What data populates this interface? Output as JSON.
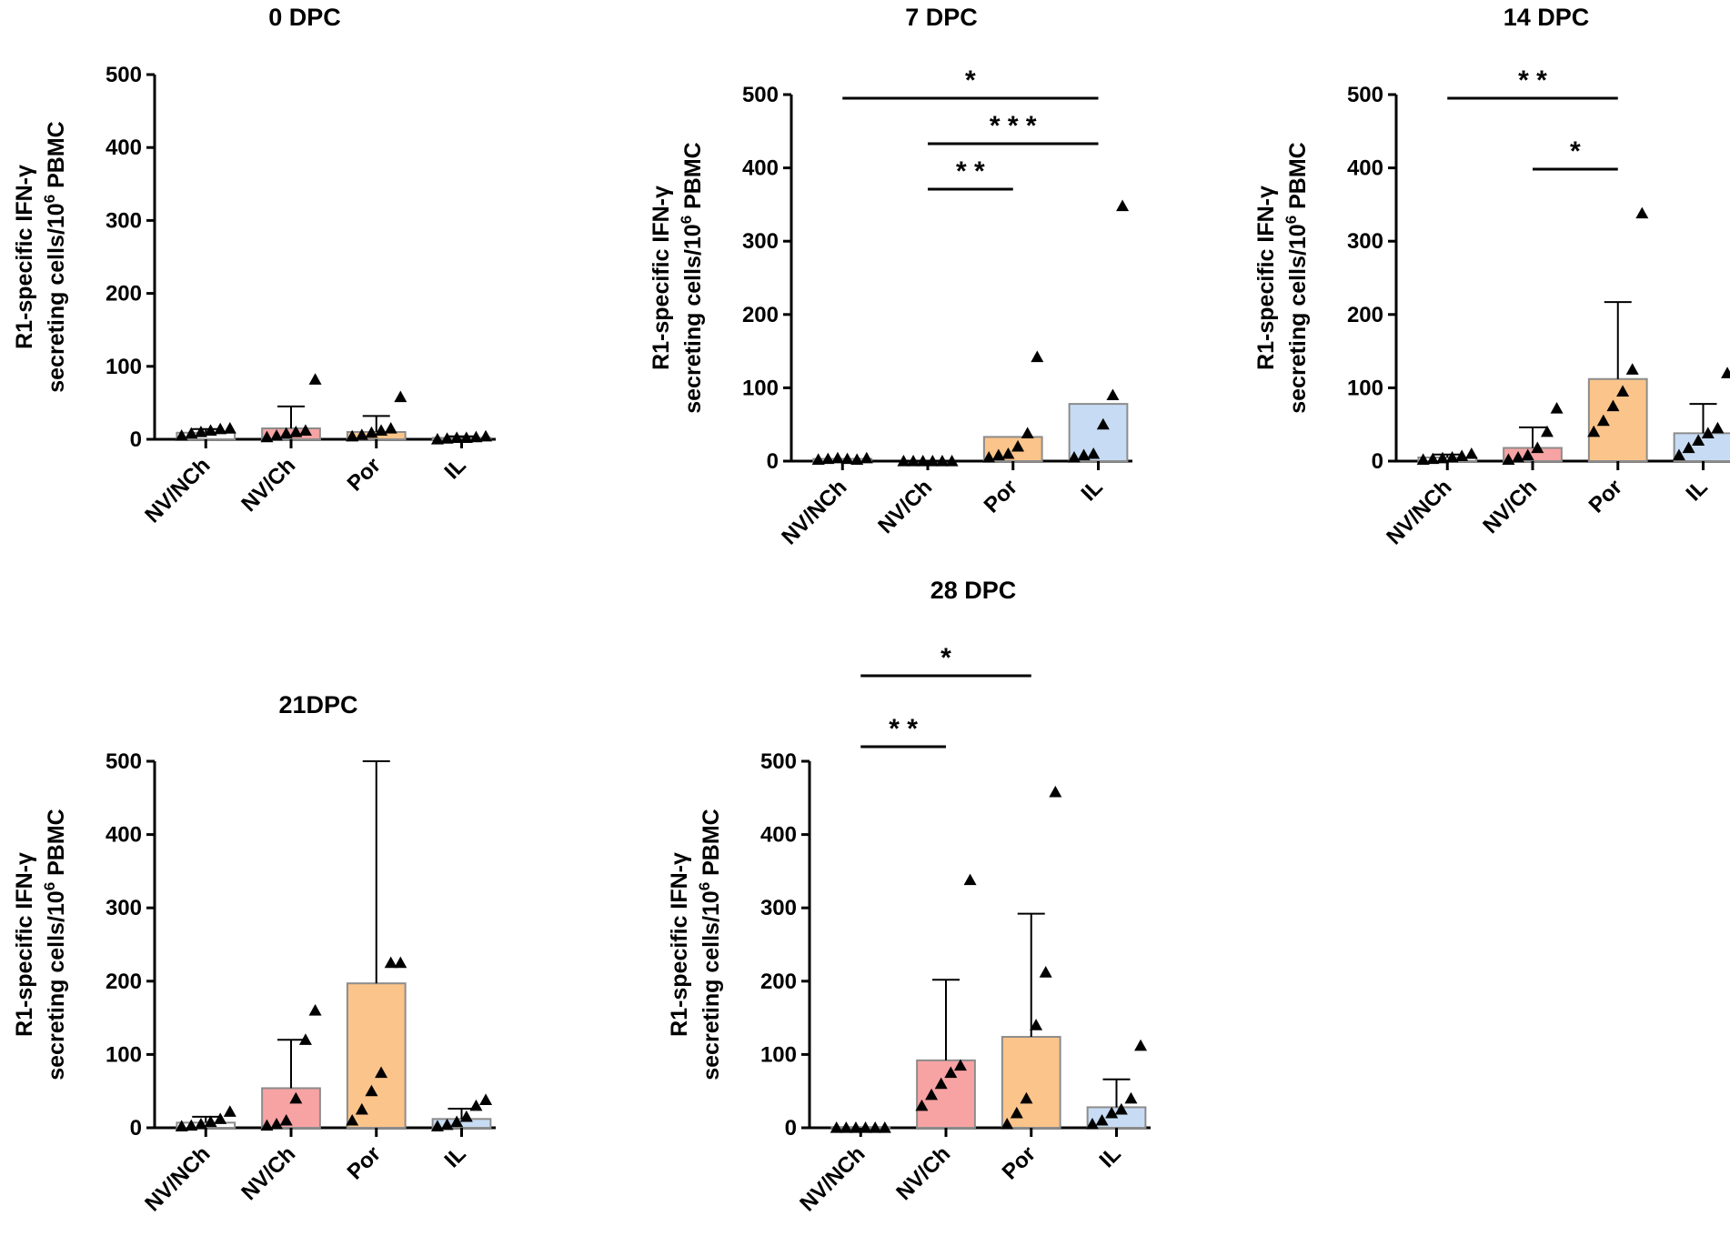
{
  "chart_data": [
    {
      "type": "bar",
      "title": "0 DPC",
      "ylabel_line1": "R1-specific IFN-γ",
      "ylabel_line2": "secreting cells/10",
      "ylabel_sup": "6",
      "ylabel_line2_tail": " PBMC",
      "ylim": [
        0,
        500
      ],
      "yticks": [
        "0",
        "100",
        "200",
        "300",
        "400",
        "500"
      ],
      "categories": [
        "NV/NCh",
        "NV/Ch",
        "Por",
        "IL"
      ],
      "values": [
        9,
        15,
        10,
        2
      ],
      "errors": [
        5,
        30,
        22,
        2
      ],
      "points": [
        [
          5,
          8,
          10,
          12,
          14,
          15
        ],
        [
          3,
          5,
          8,
          10,
          12,
          82
        ],
        [
          4,
          6,
          9,
          12,
          15,
          58
        ],
        [
          0,
          1,
          2,
          2,
          3,
          4
        ]
      ],
      "significance": []
    },
    {
      "type": "bar",
      "title": "7 DPC",
      "ylabel_line1": "R1-specific IFN-γ",
      "ylabel_line2": "secreting cells/10",
      "ylabel_sup": "6",
      "ylabel_line2_tail": " PBMC",
      "ylim": [
        0,
        500
      ],
      "yticks": [
        "0",
        "100",
        "200",
        "300",
        "400",
        "500"
      ],
      "categories": [
        "NV/NCh",
        "NV/Ch",
        "Por",
        "IL"
      ],
      "values": [
        3,
        0,
        33,
        78
      ],
      "errors": [
        0,
        0,
        0,
        0
      ],
      "points": [
        [
          2,
          3,
          4,
          3,
          2,
          4
        ],
        [
          0,
          0,
          0,
          0,
          0,
          0
        ],
        [
          5,
          8,
          10,
          20,
          38,
          142
        ],
        [
          5,
          8,
          10,
          50,
          90,
          348
        ]
      ],
      "significance": [
        {
          "from": 0,
          "to": 3,
          "label": "*"
        },
        {
          "from": 1,
          "to": 3,
          "label": "* * *"
        },
        {
          "from": 1,
          "to": 2,
          "label": "* *"
        }
      ]
    },
    {
      "type": "bar",
      "title": "14 DPC",
      "ylabel_line1": "R1-specific IFN-γ",
      "ylabel_line2": "secreting cells/10",
      "ylabel_sup": "6",
      "ylabel_line2_tail": " PBMC",
      "ylim": [
        0,
        500
      ],
      "yticks": [
        "0",
        "100",
        "200",
        "300",
        "400",
        "500"
      ],
      "categories": [
        "NV/NCh",
        "NV/Ch",
        "Por",
        "IL"
      ],
      "values": [
        5,
        18,
        112,
        38
      ],
      "errors": [
        4,
        28,
        105,
        40
      ],
      "points": [
        [
          2,
          3,
          4,
          5,
          7,
          10
        ],
        [
          2,
          5,
          8,
          18,
          40,
          72
        ],
        [
          40,
          55,
          75,
          95,
          125,
          338
        ],
        [
          8,
          18,
          28,
          38,
          45,
          120
        ]
      ],
      "significance": [
        {
          "from": 0,
          "to": 2,
          "label": "* *"
        },
        {
          "from": 1,
          "to": 2,
          "label": "*"
        }
      ]
    },
    {
      "type": "bar",
      "title": "21DPC",
      "ylabel_line1": "R1-specific IFN-γ",
      "ylabel_line2": "secreting cells/10",
      "ylabel_sup": "6",
      "ylabel_line2_tail": " PBMC",
      "ylim": [
        0,
        500
      ],
      "yticks": [
        "0",
        "100",
        "200",
        "300",
        "400",
        "500"
      ],
      "categories": [
        "NV/NCh",
        "NV/Ch",
        "Por",
        "IL"
      ],
      "values": [
        7,
        54,
        197,
        12
      ],
      "errors": [
        8,
        66,
        303,
        14
      ],
      "points": [
        [
          2,
          3,
          5,
          8,
          12,
          22
        ],
        [
          3,
          5,
          10,
          40,
          120,
          160
        ],
        [
          10,
          25,
          50,
          75,
          225,
          225
        ],
        [
          2,
          4,
          8,
          15,
          30,
          38
        ]
      ],
      "significance": []
    },
    {
      "type": "bar",
      "title": "28 DPC",
      "ylabel_line1": "R1-specific IFN-γ",
      "ylabel_line2": "secreting cells/10",
      "ylabel_sup": "6",
      "ylabel_line2_tail": " PBMC",
      "ylim": [
        0,
        500
      ],
      "yticks": [
        "0",
        "100",
        "200",
        "300",
        "400",
        "500"
      ],
      "categories": [
        "NV/NCh",
        "NV/Ch",
        "Por",
        "IL"
      ],
      "values": [
        1,
        92,
        124,
        28
      ],
      "errors": [
        0,
        110,
        168,
        38
      ],
      "points": [
        [
          0,
          0,
          0,
          0,
          0,
          0
        ],
        [
          30,
          45,
          60,
          75,
          85,
          338
        ],
        [
          5,
          20,
          40,
          140,
          212,
          458
        ],
        [
          5,
          10,
          20,
          25,
          40,
          112
        ]
      ],
      "significance": [
        {
          "from": 0,
          "to": 2,
          "label": "*"
        },
        {
          "from": 0,
          "to": 1,
          "label": "* *"
        }
      ]
    }
  ],
  "colors": {
    "NV/NCh": "#ffffff",
    "NV/Ch": "#f8a3a3",
    "Por": "#fbc48a",
    "IL": "#c7dcf4",
    "bar_edge": "#8c8c8c",
    "axis": "#000000"
  }
}
